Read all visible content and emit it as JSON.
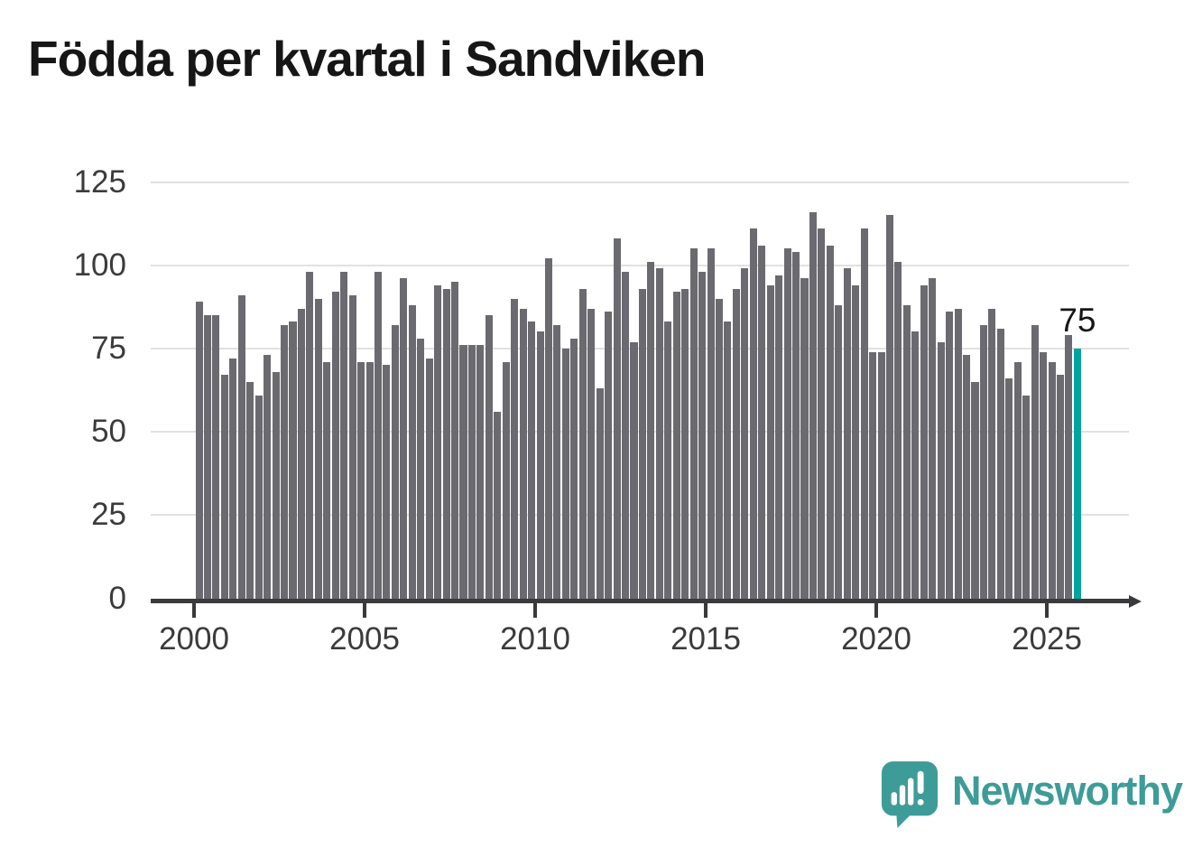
{
  "title": "Födda per kvartal i Sandviken",
  "annotation": {
    "last_value_label": "75"
  },
  "logo": {
    "text": "Newsworthy"
  },
  "colors": {
    "background": "#ffffff",
    "bar": "#6a6a70",
    "highlight": "#00a4a0",
    "grid": "#e1e1e1",
    "axis": "#3a3a3c",
    "tick_label": "#3b3b3b",
    "title_text": "#161616",
    "annotation_text": "#161616",
    "logo_teal": "#3e9c98"
  },
  "chart_data": {
    "type": "bar",
    "title": "Födda per kvartal i Sandviken",
    "x_unit": "quarter",
    "start_period": "2000-Q1",
    "end_period": "2025-Q4",
    "x_tick_labels": [
      "2000",
      "2005",
      "2010",
      "2015",
      "2020",
      "2025"
    ],
    "y_ticks": [
      0,
      25,
      50,
      75,
      100,
      125
    ],
    "ylim": [
      0,
      125
    ],
    "grid": "horizontal",
    "legend": "none",
    "highlight_last_bar": true,
    "last_value_label": "75",
    "values": [
      89,
      85,
      85,
      67,
      72,
      91,
      65,
      61,
      73,
      68,
      82,
      83,
      87,
      98,
      90,
      71,
      92,
      98,
      91,
      71,
      71,
      98,
      70,
      82,
      96,
      88,
      78,
      72,
      94,
      93,
      95,
      76,
      76,
      76,
      85,
      56,
      71,
      90,
      87,
      83,
      80,
      102,
      82,
      75,
      78,
      93,
      87,
      63,
      86,
      108,
      98,
      77,
      93,
      101,
      99,
      83,
      92,
      93,
      105,
      98,
      105,
      90,
      83,
      93,
      99,
      111,
      106,
      94,
      97,
      105,
      104,
      96,
      116,
      111,
      106,
      88,
      99,
      94,
      111,
      74,
      74,
      115,
      101,
      88,
      80,
      94,
      96,
      77,
      86,
      87,
      73,
      65,
      82,
      87,
      81,
      66,
      71,
      61,
      82,
      74,
      71,
      67,
      79,
      75
    ]
  }
}
